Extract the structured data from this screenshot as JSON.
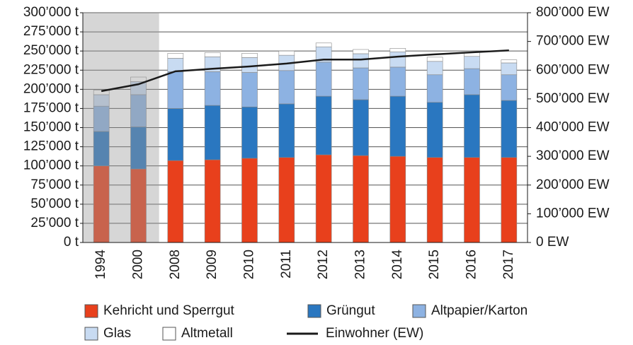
{
  "chart_data": {
    "type": "bar",
    "stacked": true,
    "categories": [
      "1994",
      "2000",
      "2008",
      "2009",
      "2010",
      "2011",
      "2012",
      "2013",
      "2014",
      "2015",
      "2016",
      "2017"
    ],
    "series": [
      {
        "name": "Kehricht und Sperrgut",
        "color": "#e8401c",
        "values": [
          100000,
          96000,
          107000,
          108000,
          110000,
          111000,
          114500,
          113500,
          112500,
          111000,
          111000,
          111000
        ]
      },
      {
        "name": "Grüngut",
        "color": "#2a77c0",
        "values": [
          45000,
          55000,
          68000,
          71000,
          67000,
          70000,
          76500,
          73000,
          78500,
          72000,
          82000,
          74500
        ]
      },
      {
        "name": "Altpapier/Karton",
        "color": "#8db2e2",
        "values": [
          33000,
          42000,
          48000,
          44000,
          45000,
          43500,
          44500,
          41500,
          38000,
          36000,
          34000,
          33500
        ]
      },
      {
        "name": "Glas",
        "color": "#c8dbf2",
        "values": [
          15000,
          17000,
          17500,
          19500,
          19500,
          20000,
          20000,
          18500,
          20000,
          17500,
          16000,
          15500
        ]
      },
      {
        "name": "Altmetall",
        "color": "#ffffff",
        "values": [
          6000,
          6000,
          6500,
          5500,
          5500,
          5500,
          5000,
          5500,
          4500,
          5500,
          5500,
          4000
        ]
      },
      {
        "name": "Einwohner (EW)",
        "type": "line",
        "axis": "y2",
        "color": "#1a1a1a",
        "values": [
          527000,
          551000,
          596000,
          605000,
          613000,
          623000,
          637000,
          637000,
          647000,
          655000,
          662000,
          669000
        ]
      }
    ],
    "ylim": [
      0,
      300000
    ],
    "yticks": [
      {
        "value": 0,
        "label": "0 t"
      },
      {
        "value": 25000,
        "label": "25’000 t"
      },
      {
        "value": 50000,
        "label": "50’000 t"
      },
      {
        "value": 75000,
        "label": "75’000 t"
      },
      {
        "value": 100000,
        "label": "100’000 t"
      },
      {
        "value": 125000,
        "label": "125’000 t"
      },
      {
        "value": 150000,
        "label": "150’000 t"
      },
      {
        "value": 175000,
        "label": "175’000 t"
      },
      {
        "value": 200000,
        "label": "200’000 t"
      },
      {
        "value": 225000,
        "label": "225’000 t"
      },
      {
        "value": 250000,
        "label": "250’000 t"
      },
      {
        "value": 275000,
        "label": "275’000 t"
      },
      {
        "value": 300000,
        "label": "300’000 t"
      }
    ],
    "y2lim": [
      0,
      800000
    ],
    "y2ticks": [
      {
        "value": 0,
        "label": "0 EW"
      },
      {
        "value": 100000,
        "label": "100’000 EW"
      },
      {
        "value": 200000,
        "label": "200’000 EW"
      },
      {
        "value": 300000,
        "label": "300’000 EW"
      },
      {
        "value": 400000,
        "label": "400’000 EW"
      },
      {
        "value": 500000,
        "label": "500’000 EW"
      },
      {
        "value": 600000,
        "label": "600’000 EW"
      },
      {
        "value": 700000,
        "label": "700’000 EW"
      },
      {
        "value": 800000,
        "label": "800’000 EW"
      }
    ],
    "grid": true
  }
}
